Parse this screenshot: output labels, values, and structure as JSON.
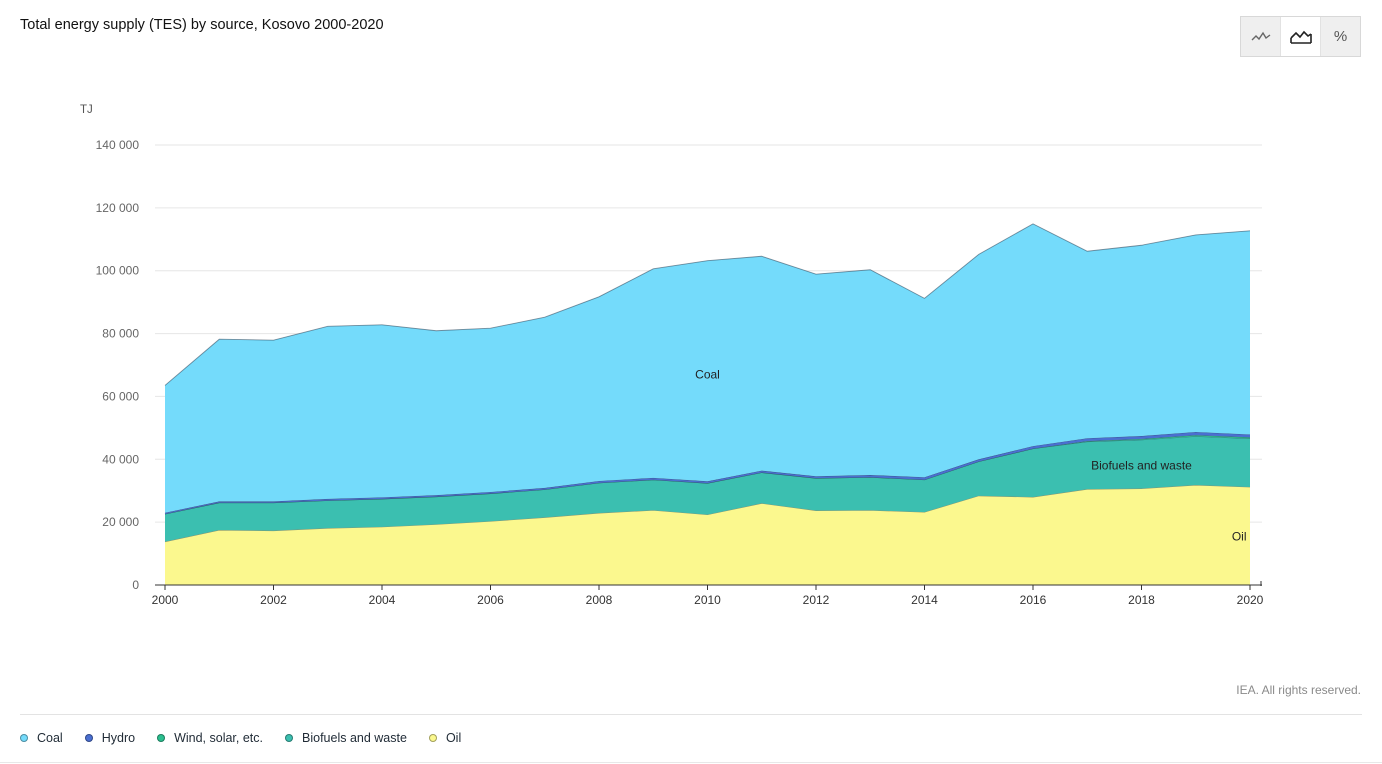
{
  "title": "Total energy supply (TES) by source, Kosovo 2000-2020",
  "toolbar": {
    "buttons": [
      {
        "name": "line-chart-button",
        "icon": "line-chart-icon"
      },
      {
        "name": "area-chart-button",
        "icon": "area-chart-icon",
        "active": true
      },
      {
        "name": "percent-button",
        "label": "%"
      }
    ]
  },
  "credit": "IEA. All rights reserved.",
  "chart_data": {
    "type": "area",
    "stacked": true,
    "y_unit": "TJ",
    "ylim": [
      0,
      140000
    ],
    "yticks": [
      0,
      20000,
      40000,
      60000,
      80000,
      100000,
      120000,
      140000
    ],
    "ytick_labels": [
      "0",
      "20 000",
      "40 000",
      "60 000",
      "80 000",
      "100 000",
      "120 000",
      "140 000"
    ],
    "x": [
      2000,
      2001,
      2002,
      2003,
      2004,
      2005,
      2006,
      2007,
      2008,
      2009,
      2010,
      2011,
      2012,
      2013,
      2014,
      2015,
      2016,
      2017,
      2018,
      2019,
      2020
    ],
    "xticks": [
      2000,
      2002,
      2004,
      2006,
      2008,
      2010,
      2012,
      2014,
      2016,
      2018,
      2020
    ],
    "xtick_labels": [
      "2000",
      "2002",
      "2004",
      "2006",
      "2008",
      "2010",
      "2012",
      "2014",
      "2016",
      "2018",
      "2020"
    ],
    "grid": true,
    "series": [
      {
        "name": "Oil",
        "color": "#fbf88e",
        "values": [
          13800,
          17500,
          17300,
          18100,
          18500,
          19300,
          20300,
          21500,
          22900,
          23800,
          22400,
          26000,
          23700,
          23800,
          23200,
          28400,
          28000,
          30500,
          30700,
          31800,
          31200
        ]
      },
      {
        "name": "Biofuels and waste",
        "color": "#3bbfb0",
        "values": [
          8800,
          8700,
          8900,
          8800,
          8900,
          8800,
          8800,
          8900,
          9600,
          9700,
          10000,
          9800,
          10300,
          10500,
          10300,
          10900,
          15400,
          15100,
          15500,
          15500,
          15400
        ]
      },
      {
        "name": "Wind, solar, etc.",
        "color": "#2bbf8f",
        "values": [
          0,
          0,
          0,
          0,
          0,
          0,
          0,
          0,
          0,
          0,
          0,
          0,
          0,
          0,
          0,
          0,
          0,
          200,
          300,
          400,
          400
        ]
      },
      {
        "name": "Hydro",
        "color": "#4a6fd1",
        "values": [
          400,
          400,
          400,
          500,
          500,
          500,
          500,
          500,
          600,
          600,
          600,
          600,
          600,
          700,
          800,
          700,
          800,
          900,
          900,
          1000,
          900
        ]
      },
      {
        "name": "Coal",
        "color": "#74dbfb",
        "values": [
          40500,
          51600,
          51300,
          54900,
          54900,
          52300,
          52100,
          54300,
          58600,
          66500,
          70200,
          68200,
          64300,
          65300,
          56900,
          65200,
          70700,
          59500,
          60700,
          62700,
          64800
        ]
      }
    ],
    "annotations": [
      {
        "text": "Coal",
        "x": 2010,
        "y": 67000
      },
      {
        "text": "Biofuels and waste",
        "x": 2018,
        "y": 38000
      },
      {
        "text": "Oil",
        "x": 2019.8,
        "y": 15500
      }
    ]
  },
  "legend": [
    {
      "label": "Coal",
      "color": "#74dbfb"
    },
    {
      "label": "Hydro",
      "color": "#4a6fd1"
    },
    {
      "label": "Wind, solar, etc.",
      "color": "#2bbf8f"
    },
    {
      "label": "Biofuels and waste",
      "color": "#3bbfb0"
    },
    {
      "label": "Oil",
      "color": "#fbf88e"
    }
  ]
}
